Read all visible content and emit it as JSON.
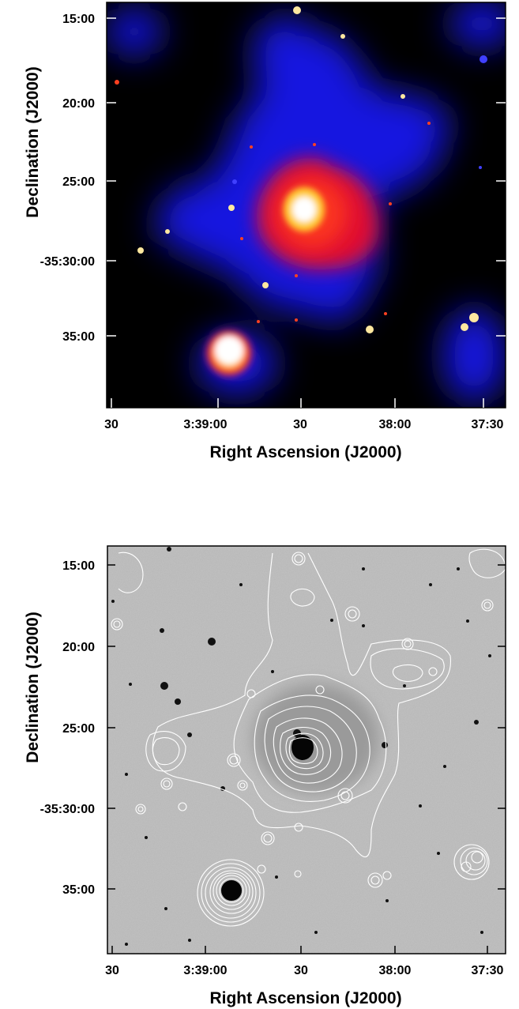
{
  "figure": {
    "top_panel": {
      "description_colors": {
        "background": "#000000",
        "diffuse": "#1a1aff",
        "hot": "#ff2a00",
        "core": "#ffffcc"
      },
      "y_ticks": [
        "15:00",
        "20:00",
        "25:00",
        "-35:30:00",
        "35:00"
      ],
      "x_ticks": [
        "30",
        "3:39:00",
        "30",
        "38:00",
        "37:30"
      ],
      "x_title": "Right Ascension (J2000)",
      "y_title": "Declination (J2000)"
    },
    "bottom_panel": {
      "description_colors": {
        "background": "#b4b4b4",
        "contour": "#ffffff",
        "star": "#000000"
      },
      "y_ticks": [
        "15:00",
        "20:00",
        "25:00",
        "-35:30:00",
        "35:00"
      ],
      "x_ticks": [
        "30",
        "3:39:00",
        "30",
        "38:00",
        "37:30"
      ],
      "x_title": "Right Ascension (J2000)",
      "y_title": "Declination (J2000)"
    }
  }
}
